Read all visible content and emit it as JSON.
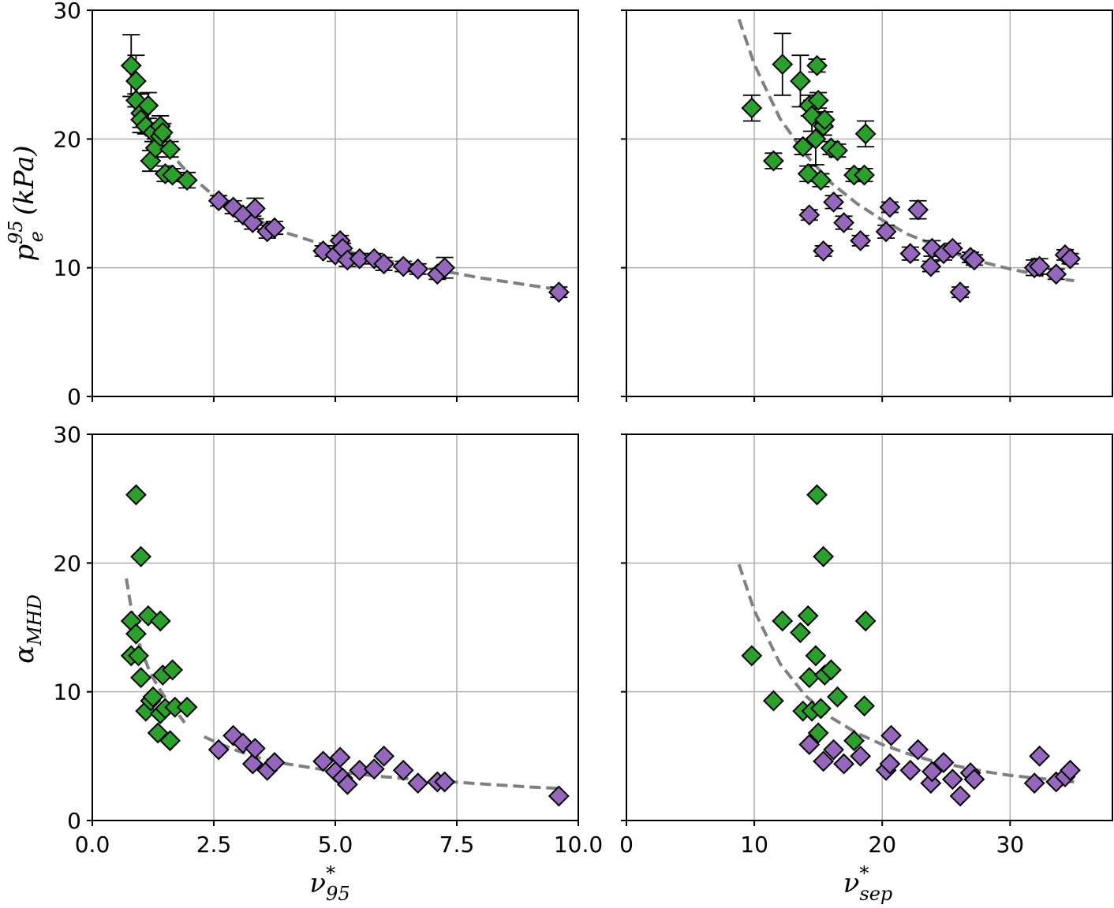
{
  "colors": {
    "green": "#2ca02c",
    "purple": "#9467bd",
    "marker_edge": "#000000",
    "fit_line": "#808080",
    "grid": "#b0b0b0"
  },
  "labels": {
    "y_top": "p",
    "y_top_sup": "95",
    "y_top_sub": "e",
    "y_top_unit": "(kPa)",
    "y_bottom": "α",
    "y_bottom_sub": "MHD",
    "x_left": "ν",
    "x_left_sup": "*",
    "x_left_sub": "95",
    "x_right": "ν",
    "x_right_sup": "*",
    "x_right_sub": "sep"
  },
  "chart_data": [
    {
      "id": "top-left",
      "type": "scatter",
      "xlim": [
        0,
        10
      ],
      "ylim": [
        0,
        30
      ],
      "xticks": [
        0,
        2.5,
        5.0,
        7.5,
        10.0
      ],
      "yticks": [
        0,
        10,
        20,
        30
      ],
      "xticklabels": [],
      "yticklabels": [
        "0",
        "10",
        "20",
        "30"
      ],
      "series": [
        {
          "name": "green",
          "color": "green",
          "points": [
            [
              0.8,
              25.7,
              2.4
            ],
            [
              0.9,
              24.5,
              2.0
            ],
            [
              0.9,
              23.0,
              0.5
            ],
            [
              1.0,
              22.0,
              1.5
            ],
            [
              1.0,
              21.5,
              0.6
            ],
            [
              1.1,
              21.0,
              0.6
            ],
            [
              1.15,
              22.6,
              1.0
            ],
            [
              1.2,
              18.3,
              0.8
            ],
            [
              1.25,
              20.5,
              0.7
            ],
            [
              1.3,
              19.3,
              0.7
            ],
            [
              1.4,
              21.0,
              0.8
            ],
            [
              1.4,
              20.2,
              0.7
            ],
            [
              1.45,
              20.5,
              0.7
            ],
            [
              1.5,
              17.3,
              0.6
            ],
            [
              1.6,
              19.2,
              0.6
            ],
            [
              1.65,
              17.2,
              0.5
            ],
            [
              1.95,
              16.8,
              0.6
            ]
          ]
        },
        {
          "name": "purple",
          "color": "purple",
          "points": [
            [
              2.6,
              15.2,
              0.4
            ],
            [
              2.9,
              14.7,
              0.5
            ],
            [
              3.1,
              14.1,
              0.5
            ],
            [
              3.3,
              13.5,
              0.5
            ],
            [
              3.35,
              14.6,
              0.8
            ],
            [
              3.6,
              12.8,
              0.5
            ],
            [
              3.75,
              13.1,
              0.5
            ],
            [
              4.75,
              11.3,
              0.4
            ],
            [
              5.0,
              11.0,
              0.5
            ],
            [
              5.1,
              12.1,
              0.4
            ],
            [
              5.15,
              11.5,
              0.4
            ],
            [
              5.25,
              10.6,
              0.5
            ],
            [
              5.5,
              10.7,
              0.4
            ],
            [
              5.8,
              10.7,
              0.4
            ],
            [
              6.0,
              10.3,
              0.5
            ],
            [
              6.4,
              10.1,
              0.4
            ],
            [
              6.7,
              9.9,
              0.4
            ],
            [
              7.1,
              9.5,
              0.4
            ],
            [
              7.25,
              10.0,
              0.8
            ],
            [
              9.6,
              8.1,
              0.4
            ]
          ]
        }
      ],
      "fit": [
        [
          0.8,
          25.0
        ],
        [
          1.0,
          22.6
        ],
        [
          1.5,
          19.4
        ],
        [
          2.0,
          17.2
        ],
        [
          2.5,
          15.6
        ],
        [
          3.0,
          14.4
        ],
        [
          4.0,
          12.7
        ],
        [
          5.0,
          11.5
        ],
        [
          6.0,
          10.6
        ],
        [
          7.0,
          9.9
        ],
        [
          8.0,
          9.2
        ],
        [
          9.6,
          8.3
        ]
      ]
    },
    {
      "id": "top-right",
      "type": "scatter",
      "xlim": [
        0,
        38
      ],
      "ylim": [
        0,
        30
      ],
      "xticks": [
        0,
        10,
        20,
        30
      ],
      "yticks": [
        0,
        10,
        20,
        30
      ],
      "xticklabels": [],
      "yticklabels": [],
      "series": [
        {
          "name": "green",
          "color": "green",
          "points": [
            [
              9.8,
              22.4,
              1.0
            ],
            [
              11.5,
              18.3,
              0.6
            ],
            [
              12.2,
              25.8,
              2.4
            ],
            [
              13.6,
              24.5,
              2.0
            ],
            [
              13.8,
              19.4,
              0.6
            ],
            [
              14.2,
              17.3,
              0.6
            ],
            [
              14.3,
              22.6,
              0.8
            ],
            [
              14.5,
              21.8,
              1.2
            ],
            [
              14.8,
              20.0,
              2.0
            ],
            [
              14.9,
              25.7,
              0.5
            ],
            [
              15.0,
              23.0,
              0.6
            ],
            [
              15.2,
              16.8,
              0.5
            ],
            [
              15.4,
              21.0,
              0.7
            ],
            [
              15.5,
              21.5,
              0.6
            ],
            [
              16.0,
              19.3,
              0.5
            ],
            [
              16.5,
              19.1,
              0.5
            ],
            [
              17.8,
              17.2,
              0.5
            ],
            [
              18.6,
              17.2,
              0.5
            ],
            [
              18.7,
              20.4,
              1.0
            ]
          ]
        },
        {
          "name": "purple",
          "color": "purple",
          "points": [
            [
              14.3,
              14.1,
              0.4
            ],
            [
              15.4,
              11.3,
              0.4
            ],
            [
              16.2,
              15.1,
              0.5
            ],
            [
              17.0,
              13.5,
              0.5
            ],
            [
              18.3,
              12.1,
              0.4
            ],
            [
              20.3,
              12.8,
              0.5
            ],
            [
              20.6,
              14.7,
              0.4
            ],
            [
              22.2,
              11.1,
              0.5
            ],
            [
              22.8,
              14.5,
              0.7
            ],
            [
              23.8,
              10.1,
              0.4
            ],
            [
              23.9,
              11.5,
              0.6
            ],
            [
              24.8,
              11.1,
              0.5
            ],
            [
              25.5,
              11.5,
              0.4
            ],
            [
              26.1,
              8.1,
              0.4
            ],
            [
              26.9,
              10.8,
              0.4
            ],
            [
              27.2,
              10.6,
              0.4
            ],
            [
              31.9,
              10.0,
              0.6
            ],
            [
              32.3,
              10.1,
              0.6
            ],
            [
              33.6,
              9.5,
              0.4
            ],
            [
              34.3,
              11.0,
              0.4
            ],
            [
              34.7,
              10.7,
              0.4
            ]
          ]
        }
      ],
      "fit": [
        [
          8.8,
          29.3
        ],
        [
          10.0,
          25.8
        ],
        [
          12.0,
          21.6
        ],
        [
          14.0,
          18.8
        ],
        [
          16.0,
          16.6
        ],
        [
          18.0,
          15.0
        ],
        [
          20.0,
          13.7
        ],
        [
          22.0,
          12.6
        ],
        [
          24.0,
          11.8
        ],
        [
          26.0,
          11.0
        ],
        [
          28.0,
          10.4
        ],
        [
          30.0,
          9.9
        ],
        [
          32.0,
          9.5
        ],
        [
          34.0,
          9.1
        ],
        [
          35.0,
          9.0
        ]
      ]
    },
    {
      "id": "bottom-left",
      "type": "scatter",
      "xlim": [
        0,
        10
      ],
      "ylim": [
        0,
        30
      ],
      "xticks": [
        0,
        2.5,
        5.0,
        7.5,
        10.0
      ],
      "yticks": [
        0,
        10,
        20,
        30
      ],
      "xticklabels": [
        "0.0",
        "2.5",
        "5.0",
        "7.5",
        "10.0"
      ],
      "yticklabels": [
        "0",
        "10",
        "20",
        "30"
      ],
      "series": [
        {
          "name": "green",
          "color": "green",
          "points": [
            [
              0.8,
              15.5
            ],
            [
              0.8,
              12.8
            ],
            [
              0.9,
              14.5
            ],
            [
              0.9,
              25.3
            ],
            [
              0.95,
              12.8
            ],
            [
              1.0,
              11.1
            ],
            [
              1.0,
              20.5
            ],
            [
              1.1,
              8.5
            ],
            [
              1.15,
              15.9
            ],
            [
              1.2,
              9.3
            ],
            [
              1.25,
              9.6
            ],
            [
              1.35,
              6.8
            ],
            [
              1.4,
              8.3
            ],
            [
              1.4,
              15.5
            ],
            [
              1.45,
              11.3
            ],
            [
              1.5,
              8.7
            ],
            [
              1.6,
              6.2
            ],
            [
              1.65,
              11.7
            ],
            [
              1.7,
              8.8
            ],
            [
              1.95,
              8.8
            ]
          ]
        },
        {
          "name": "purple",
          "color": "purple",
          "points": [
            [
              2.6,
              5.5
            ],
            [
              2.9,
              6.6
            ],
            [
              3.1,
              6.0
            ],
            [
              3.3,
              4.4
            ],
            [
              3.35,
              5.6
            ],
            [
              3.6,
              3.9
            ],
            [
              3.75,
              4.5
            ],
            [
              4.75,
              4.6
            ],
            [
              5.0,
              3.8
            ],
            [
              5.1,
              4.9
            ],
            [
              5.15,
              3.3
            ],
            [
              5.25,
              2.8
            ],
            [
              5.5,
              3.9
            ],
            [
              5.8,
              4.0
            ],
            [
              6.0,
              5.0
            ],
            [
              6.4,
              3.9
            ],
            [
              6.7,
              2.9
            ],
            [
              7.1,
              3.0
            ],
            [
              7.25,
              3.0
            ],
            [
              9.6,
              1.9
            ]
          ]
        }
      ],
      "fit_segments": [
        [
          [
            0.7,
            18.8
          ],
          [
            0.8,
            16.5
          ],
          [
            0.9,
            14.7
          ],
          [
            1.0,
            13.3
          ],
          [
            1.2,
            11.4
          ],
          [
            1.4,
            10.1
          ],
          [
            1.6,
            9.0
          ],
          [
            1.8,
            8.1
          ],
          [
            1.9,
            7.6
          ]
        ],
        [
          [
            2.3,
            6.5
          ],
          [
            2.6,
            6.0
          ],
          [
            3.0,
            5.4
          ],
          [
            3.5,
            4.8
          ],
          [
            4.0,
            4.4
          ],
          [
            5.0,
            3.8
          ],
          [
            6.0,
            3.4
          ],
          [
            7.0,
            3.1
          ],
          [
            8.0,
            2.85
          ],
          [
            9.0,
            2.6
          ],
          [
            9.6,
            2.5
          ]
        ]
      ]
    },
    {
      "id": "bottom-right",
      "type": "scatter",
      "xlim": [
        0,
        38
      ],
      "ylim": [
        0,
        30
      ],
      "xticks": [
        0,
        10,
        20,
        30
      ],
      "yticks": [
        0,
        10,
        20,
        30
      ],
      "xticklabels": [
        "0",
        "10",
        "20",
        "30"
      ],
      "yticklabels": [],
      "series": [
        {
          "name": "green",
          "color": "green",
          "points": [
            [
              9.8,
              12.8
            ],
            [
              11.5,
              9.3
            ],
            [
              12.2,
              15.5
            ],
            [
              13.6,
              14.6
            ],
            [
              13.8,
              8.5
            ],
            [
              14.2,
              15.9
            ],
            [
              14.3,
              11.1
            ],
            [
              14.5,
              8.5
            ],
            [
              14.8,
              12.8
            ],
            [
              14.9,
              25.3
            ],
            [
              15.0,
              6.8
            ],
            [
              15.2,
              8.7
            ],
            [
              15.4,
              20.5
            ],
            [
              15.5,
              11.3
            ],
            [
              16.0,
              11.7
            ],
            [
              16.5,
              9.6
            ],
            [
              17.8,
              6.2
            ],
            [
              18.6,
              8.9
            ],
            [
              18.7,
              15.5
            ]
          ]
        },
        {
          "name": "purple",
          "color": "purple",
          "points": [
            [
              14.3,
              5.9
            ],
            [
              15.4,
              4.6
            ],
            [
              16.2,
              5.5
            ],
            [
              17.0,
              4.4
            ],
            [
              18.3,
              5.0
            ],
            [
              20.3,
              3.9
            ],
            [
              20.6,
              4.4
            ],
            [
              20.7,
              6.6
            ],
            [
              22.2,
              3.9
            ],
            [
              22.8,
              5.5
            ],
            [
              23.8,
              2.9
            ],
            [
              23.9,
              3.8
            ],
            [
              24.8,
              4.5
            ],
            [
              25.5,
              3.2
            ],
            [
              26.1,
              1.9
            ],
            [
              26.9,
              3.7
            ],
            [
              27.2,
              3.2
            ],
            [
              31.9,
              2.9
            ],
            [
              32.3,
              5.0
            ],
            [
              33.6,
              3.0
            ],
            [
              34.3,
              3.4
            ],
            [
              34.7,
              3.9
            ]
          ]
        }
      ],
      "fit": [
        [
          8.8,
          19.9
        ],
        [
          10.0,
          16.3
        ],
        [
          12.0,
          12.2
        ],
        [
          14.0,
          9.7
        ],
        [
          16.0,
          8.0
        ],
        [
          18.0,
          6.8
        ],
        [
          20.0,
          5.9
        ],
        [
          22.0,
          5.2
        ],
        [
          24.0,
          4.6
        ],
        [
          26.0,
          4.2
        ],
        [
          28.0,
          3.8
        ],
        [
          30.0,
          3.5
        ],
        [
          32.0,
          3.3
        ],
        [
          34.0,
          3.1
        ],
        [
          35.0,
          3.0
        ]
      ]
    }
  ]
}
